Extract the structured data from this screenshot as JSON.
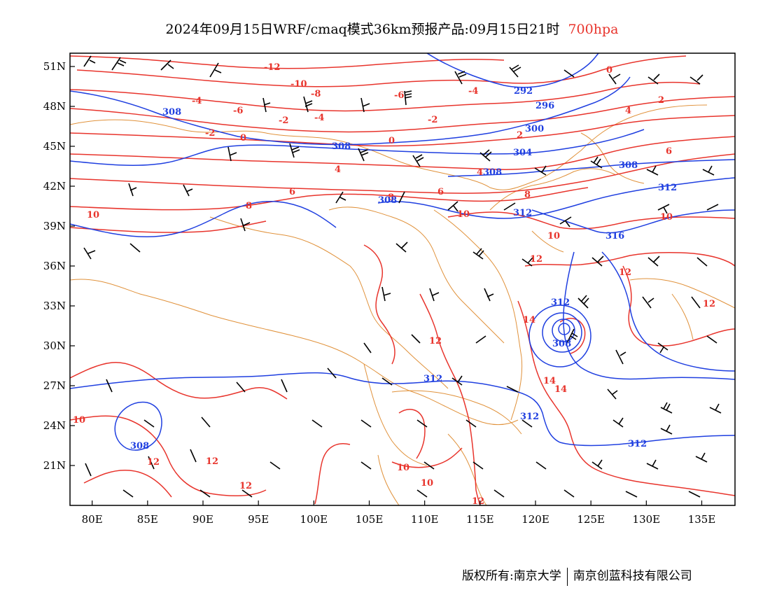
{
  "title": {
    "main": "2024年09月15日WRF/cmaq模式36km预报产品:09月15日21时",
    "level": "700hpa"
  },
  "colors": {
    "temperature": "#e8342c",
    "height": "#1f3fe0",
    "border": "#e0913a",
    "wind": "#000000",
    "frame": "#000000"
  },
  "axes": {
    "x_ticks": [
      "80E",
      "85E",
      "90E",
      "95E",
      "100E",
      "105E",
      "110E",
      "115E",
      "120E",
      "125E",
      "130E",
      "135E"
    ],
    "y_ticks": [
      "51N",
      "48N",
      "45N",
      "42N",
      "39N",
      "36N",
      "33N",
      "30N",
      "27N",
      "24N",
      "21N"
    ],
    "x_range": [
      78,
      138
    ],
    "y_range": [
      18,
      52
    ]
  },
  "temperature_labels": [
    "-12",
    "-10",
    "-8",
    "-6",
    "-4",
    "-2",
    "0",
    "2",
    "4",
    "6",
    "8",
    "10",
    "12",
    "14"
  ],
  "height_labels": [
    "292",
    "296",
    "300",
    "304",
    "308",
    "312",
    "316"
  ],
  "footer": {
    "left": "版权所有:南京大学",
    "right": "南京创蓝科技有限公司"
  }
}
